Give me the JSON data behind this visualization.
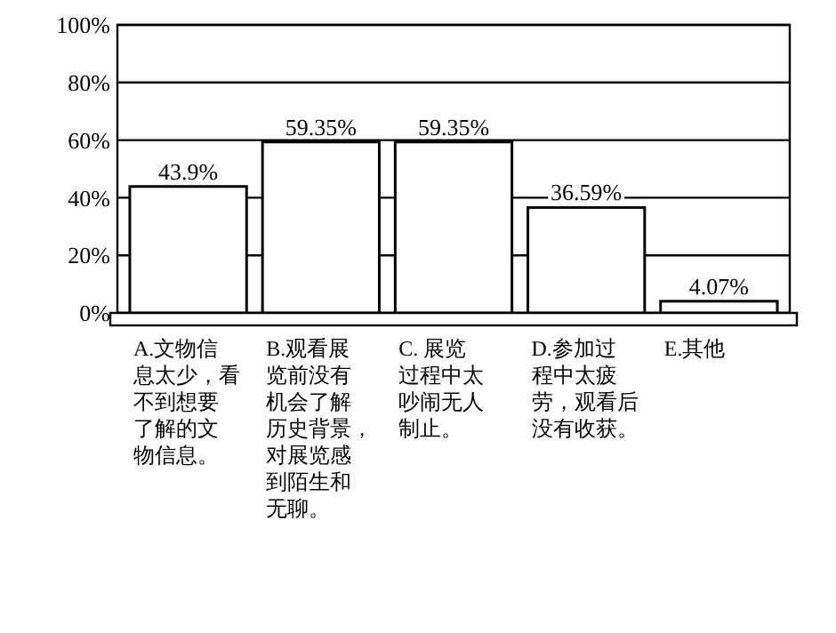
{
  "chart_data": {
    "type": "bar",
    "categories": [
      "A.文物信息太少，看不到想要了解的文物信息。",
      "B.观看展览前没有机会了解历史背景，对展览感到陌生和无聊。",
      "C. 展览过程中太吵闹无人制止。",
      "D.参加过程中太疲劳，观看后没有收获。",
      "E.其他"
    ],
    "values": [
      43.9,
      59.35,
      59.35,
      36.59,
      4.07
    ],
    "color": "#ffffff",
    "ylim": [
      0,
      100
    ],
    "yticks": [
      {
        "value": 0,
        "label": "0%"
      },
      {
        "value": 20,
        "label": "20%"
      },
      {
        "value": 40,
        "label": "40%"
      },
      {
        "value": 60,
        "label": "60%"
      },
      {
        "value": 80,
        "label": "80%"
      },
      {
        "value": 100,
        "label": "100%"
      }
    ],
    "grid": "y",
    "value_labels": [
      "43.9%",
      "59.35%",
      "59.35%",
      "36.59%",
      "4.07%"
    ]
  }
}
